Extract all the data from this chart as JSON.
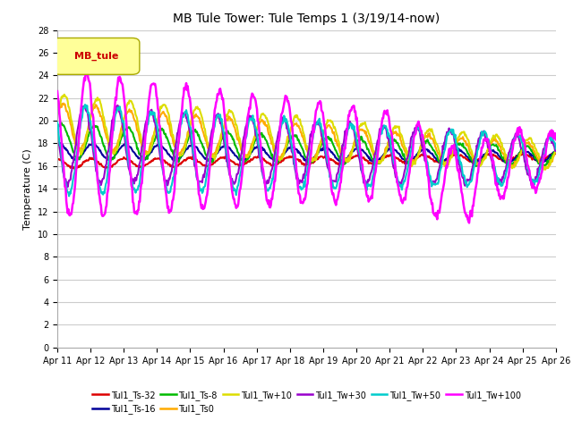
{
  "title": "MB Tule Tower: Tule Temps 1 (3/19/14-now)",
  "ylabel": "Temperature (C)",
  "ylim": [
    0,
    28
  ],
  "yticks": [
    0,
    2,
    4,
    6,
    8,
    10,
    12,
    14,
    16,
    18,
    20,
    22,
    24,
    26,
    28
  ],
  "x_labels": [
    "Apr 11",
    "Apr 12",
    "Apr 13",
    "Apr 14",
    "Apr 15",
    "Apr 16",
    "Apr 17",
    "Apr 18",
    "Apr 19",
    "Apr 20",
    "Apr 21",
    "Apr 22",
    "Apr 23",
    "Apr 24",
    "Apr 25",
    "Apr 26"
  ],
  "legend_box_label": "MB_tule",
  "legend_box_color": "#ffff99",
  "legend_box_text_color": "#cc0000",
  "series": [
    {
      "label": "Tul1_Ts-32",
      "color": "#dd0000",
      "lw": 1.5
    },
    {
      "label": "Tul1_Ts-16",
      "color": "#000099",
      "lw": 1.5
    },
    {
      "label": "Tul1_Ts-8",
      "color": "#00bb00",
      "lw": 1.5
    },
    {
      "label": "Tul1_Ts0",
      "color": "#ffaa00",
      "lw": 1.5
    },
    {
      "label": "Tul1_Tw+10",
      "color": "#dddd00",
      "lw": 1.5
    },
    {
      "label": "Tul1_Tw+30",
      "color": "#9900cc",
      "lw": 1.5
    },
    {
      "label": "Tul1_Tw+50",
      "color": "#00cccc",
      "lw": 1.5
    },
    {
      "label": "Tul1_Tw+100",
      "color": "#ff00ff",
      "lw": 1.8
    }
  ],
  "background_color": "#ffffff",
  "grid_color": "#cccccc"
}
